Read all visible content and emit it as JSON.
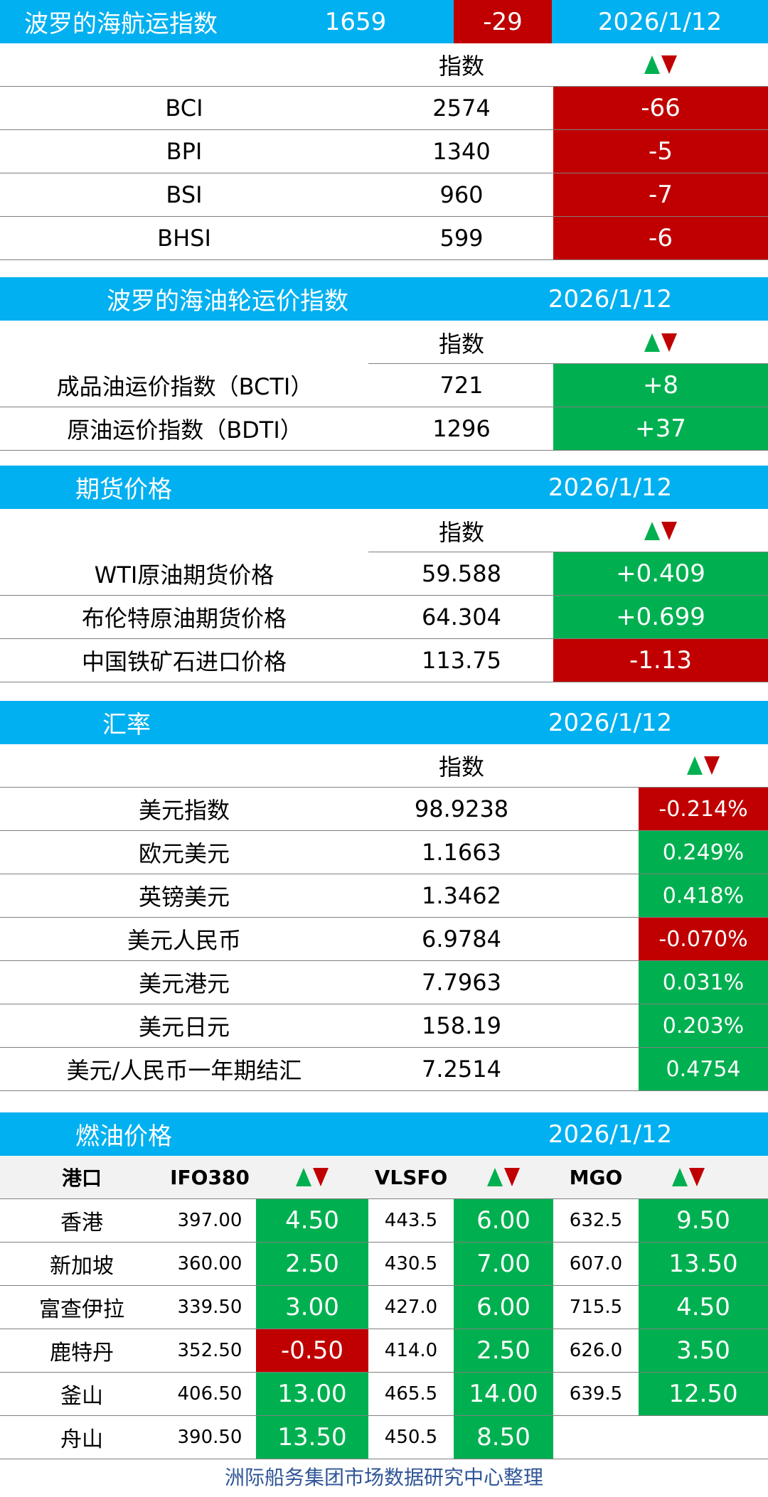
{
  "baltic": {
    "title": "波罗的海航运指数",
    "value": "1659",
    "change": "-29",
    "date": "2026/1/12",
    "col_index": "指数",
    "rows": [
      {
        "name": "BCI",
        "value": "2574",
        "change": "-66"
      },
      {
        "name": "BPI",
        "value": "1340",
        "change": "-5"
      },
      {
        "name": "BSI",
        "value": "960",
        "change": "-7"
      },
      {
        "name": "BHSI",
        "value": "599",
        "change": "-6"
      }
    ]
  },
  "tanker": {
    "title": "波罗的海油轮运价指数",
    "date": "2026/1/12",
    "col_index": "指数",
    "rows": [
      {
        "name": "成品油运价指数（BCTI）",
        "value": "721",
        "change": "+8"
      },
      {
        "name": "原油运价指数（BDTI）",
        "value": "1296",
        "change": "+37"
      }
    ]
  },
  "futures": {
    "title": "期货价格",
    "date": "2026/1/12",
    "col_index": "指数",
    "rows": [
      {
        "name": "WTI原油期货价格",
        "value": "59.588",
        "change": "+0.409"
      },
      {
        "name": "布伦特原油期货价格",
        "value": "64.304",
        "change": "+0.699"
      },
      {
        "name": "中国铁矿石进口价格",
        "value": "113.75",
        "change": "-1.13"
      }
    ]
  },
  "fx": {
    "title": "汇率",
    "date": "2026/1/12",
    "col_index": "指数",
    "rows": [
      {
        "name": "美元指数",
        "value": "98.9238",
        "change": "-0.214%"
      },
      {
        "name": "欧元美元",
        "value": "1.1663",
        "change": "0.249%"
      },
      {
        "name": "英镑美元",
        "value": "1.3462",
        "change": "0.418%"
      },
      {
        "name": "美元人民币",
        "value": "6.9784",
        "change": "-0.070%"
      },
      {
        "name": "美元港元",
        "value": "7.7963",
        "change": "0.031%"
      },
      {
        "name": "美元日元",
        "value": "158.19",
        "change": "0.203%"
      },
      {
        "name": "美元/人民币一年期结汇",
        "value": "7.2514",
        "change": "0.4754"
      }
    ]
  },
  "bunker": {
    "title": "燃油价格",
    "date": "2026/1/12",
    "headers": {
      "port": "港口",
      "ifo": "IFO380",
      "vlsfo": "VLSFO",
      "mgo": "MGO"
    },
    "rows": [
      {
        "port": "香港",
        "ifo": "397.00",
        "ifo_chg": "4.50",
        "vlsfo": "443.5",
        "vlsfo_chg": "6.00",
        "mgo": "632.5",
        "mgo_chg": "9.50"
      },
      {
        "port": "新加坡",
        "ifo": "360.00",
        "ifo_chg": "2.50",
        "vlsfo": "430.5",
        "vlsfo_chg": "7.00",
        "mgo": "607.0",
        "mgo_chg": "13.50"
      },
      {
        "port": "富查伊拉",
        "ifo": "339.50",
        "ifo_chg": "3.00",
        "vlsfo": "427.0",
        "vlsfo_chg": "6.00",
        "mgo": "715.5",
        "mgo_chg": "4.50"
      },
      {
        "port": "鹿特丹",
        "ifo": "352.50",
        "ifo_chg": "-0.50",
        "vlsfo": "414.0",
        "vlsfo_chg": "2.50",
        "mgo": "626.0",
        "mgo_chg": "3.50"
      },
      {
        "port": "釜山",
        "ifo": "406.50",
        "ifo_chg": "13.00",
        "vlsfo": "465.5",
        "vlsfo_chg": "14.00",
        "mgo": "639.5",
        "mgo_chg": "12.50"
      },
      {
        "port": "舟山",
        "ifo": "390.50",
        "ifo_chg": "13.50",
        "vlsfo": "450.5",
        "vlsfo_chg": "8.50",
        "mgo": "",
        "mgo_chg": ""
      }
    ]
  },
  "footer": "洲际船务集团市场数据研究中心整理",
  "colors": {
    "header_blue": "#00b0f0",
    "down_red": "#c00000",
    "up_green": "#00b050",
    "footer_blue": "#2f5597"
  }
}
